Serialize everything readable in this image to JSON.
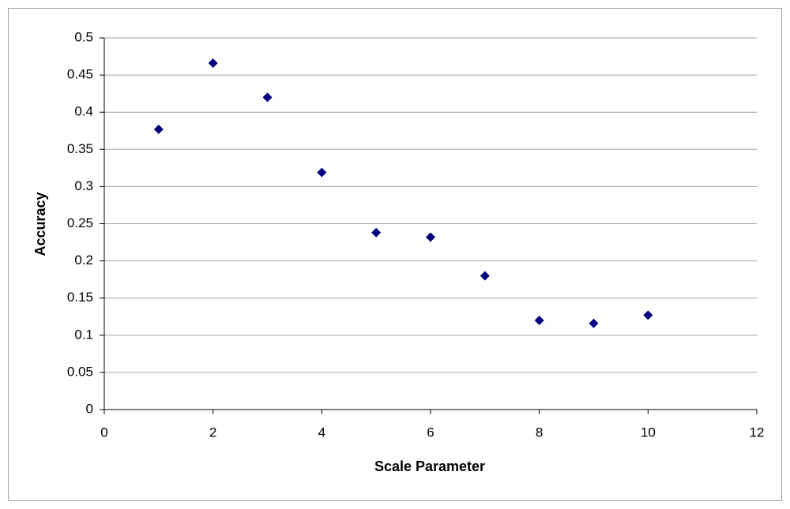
{
  "chart_data": {
    "type": "scatter",
    "x_label": "Scale Parameter",
    "y_label": "Accuracy",
    "x": [
      1,
      2,
      3,
      4,
      5,
      6,
      7,
      8,
      9,
      10
    ],
    "values": [
      0.377,
      0.466,
      0.42,
      0.319,
      0.238,
      0.232,
      0.18,
      0.12,
      0.116,
      0.127
    ],
    "color": "#000080",
    "xlim": [
      0,
      12
    ],
    "xticks": [
      0,
      2,
      4,
      6,
      8,
      10,
      12
    ],
    "ylim": [
      0,
      0.5
    ],
    "yticks": [
      0,
      0.05,
      0.1,
      0.15,
      0.2,
      0.25,
      0.3,
      0.35,
      0.4,
      0.45,
      0.5
    ],
    "grid": true
  }
}
